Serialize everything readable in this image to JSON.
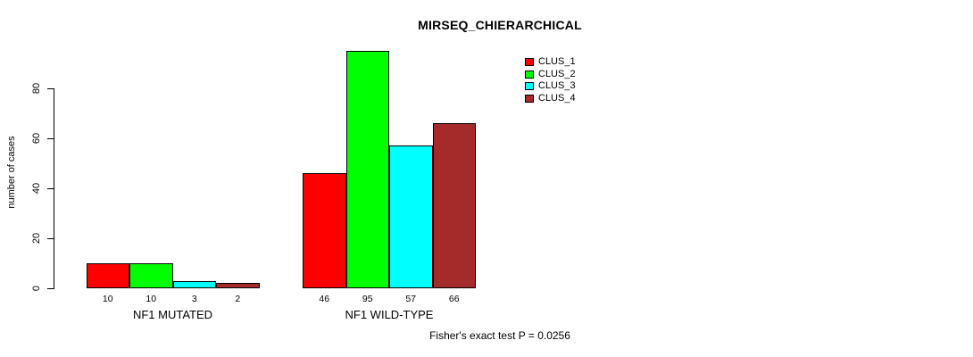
{
  "title": "MIRSEQ_CHIERARCHICAL",
  "footer": "Fisher's exact test P = 0.0256",
  "y_axis": {
    "label": "number of cases",
    "ticks": [
      "0",
      "20",
      "40",
      "60",
      "80"
    ]
  },
  "legend": [
    {
      "label": "CLUS_1",
      "color": "#ff0000"
    },
    {
      "label": "CLUS_2",
      "color": "#00ff00"
    },
    {
      "label": "CLUS_3",
      "color": "#00ffff"
    },
    {
      "label": "CLUS_4",
      "color": "#a52a2a"
    }
  ],
  "chart_data": {
    "type": "bar",
    "title": "MIRSEQ_CHIERARCHICAL",
    "xlabel": "",
    "ylabel": "number of cases",
    "ylim": [
      0,
      80
    ],
    "yticks": [
      0,
      20,
      40,
      60,
      80
    ],
    "grid": false,
    "legend_position": "top-right",
    "categories": [
      "NF1 MUTATED",
      "NF1 WILD-TYPE"
    ],
    "series": [
      {
        "name": "CLUS_1",
        "color": "#ff0000",
        "values": [
          10,
          46
        ]
      },
      {
        "name": "CLUS_2",
        "color": "#00ff00",
        "values": [
          10,
          95
        ]
      },
      {
        "name": "CLUS_3",
        "color": "#00ffff",
        "values": [
          3,
          57
        ]
      },
      {
        "name": "CLUS_4",
        "color": "#a52a2a",
        "values": [
          2,
          66
        ]
      }
    ],
    "bar_value_labels": [
      [
        "10",
        "10",
        "3",
        "2"
      ],
      [
        "46",
        "95",
        "57",
        "66"
      ]
    ],
    "annotation": "Fisher's exact test P = 0.0256"
  }
}
